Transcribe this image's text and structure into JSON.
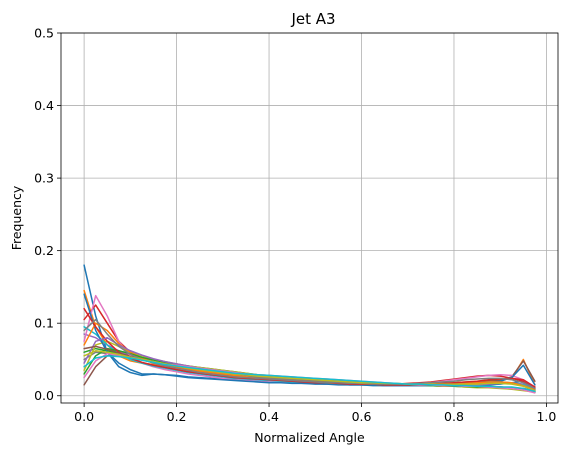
{
  "chart_data": {
    "type": "line",
    "title": "Jet A3",
    "xlabel": "Normalized Angle",
    "ylabel": "Frequency",
    "xlim": [
      -0.05,
      1.025
    ],
    "ylim": [
      -0.01,
      0.5
    ],
    "xticks": [
      0.0,
      0.2,
      0.4,
      0.6,
      0.8,
      1.0
    ],
    "xtick_labels": [
      "0.0",
      "0.2",
      "0.4",
      "0.6",
      "0.8",
      "1.0"
    ],
    "yticks": [
      0.0,
      0.1,
      0.2,
      0.3,
      0.4,
      0.5
    ],
    "ytick_labels": [
      "0.0",
      "0.1",
      "0.2",
      "0.3",
      "0.4",
      "0.5"
    ],
    "grid": true,
    "legend": "none",
    "x": [
      0.0,
      0.025,
      0.05,
      0.075,
      0.1,
      0.125,
      0.15,
      0.175,
      0.2,
      0.225,
      0.25,
      0.275,
      0.3,
      0.325,
      0.35,
      0.375,
      0.4,
      0.425,
      0.45,
      0.475,
      0.5,
      0.525,
      0.55,
      0.575,
      0.6,
      0.625,
      0.65,
      0.675,
      0.7,
      0.725,
      0.75,
      0.775,
      0.8,
      0.825,
      0.85,
      0.875,
      0.9,
      0.925,
      0.95,
      0.975
    ],
    "series_colors": [
      "#1f77b4",
      "#ff7f0e",
      "#2ca02c",
      "#d62728",
      "#9467bd",
      "#8c564b",
      "#e377c2",
      "#7f7f7f",
      "#bcbd22",
      "#17becf"
    ],
    "series": [
      {
        "values": [
          0.18,
          0.11,
          0.06,
          0.04,
          0.032,
          0.028,
          0.03,
          0.029,
          0.028,
          0.026,
          0.025,
          0.024,
          0.023,
          0.022,
          0.021,
          0.02,
          0.019,
          0.018,
          0.018,
          0.017,
          0.017,
          0.016,
          0.016,
          0.015,
          0.015,
          0.015,
          0.014,
          0.014,
          0.014,
          0.014,
          0.014,
          0.014,
          0.014,
          0.014,
          0.014,
          0.015,
          0.016,
          0.018,
          0.02,
          0.012
        ]
      },
      {
        "values": [
          0.145,
          0.095,
          0.07,
          0.055,
          0.048,
          0.045,
          0.043,
          0.04,
          0.037,
          0.034,
          0.031,
          0.029,
          0.027,
          0.025,
          0.023,
          0.022,
          0.021,
          0.02,
          0.019,
          0.018,
          0.018,
          0.017,
          0.017,
          0.016,
          0.016,
          0.015,
          0.015,
          0.015,
          0.015,
          0.015,
          0.016,
          0.017,
          0.018,
          0.019,
          0.02,
          0.021,
          0.022,
          0.024,
          0.05,
          0.015
        ]
      },
      {
        "values": [
          0.06,
          0.065,
          0.062,
          0.058,
          0.055,
          0.05,
          0.047,
          0.045,
          0.043,
          0.041,
          0.039,
          0.037,
          0.035,
          0.033,
          0.031,
          0.029,
          0.027,
          0.025,
          0.024,
          0.023,
          0.022,
          0.021,
          0.02,
          0.019,
          0.018,
          0.017,
          0.016,
          0.015,
          0.015,
          0.014,
          0.014,
          0.013,
          0.013,
          0.012,
          0.012,
          0.012,
          0.011,
          0.01,
          0.008,
          0.006
        ]
      },
      {
        "values": [
          0.105,
          0.125,
          0.1,
          0.075,
          0.06,
          0.052,
          0.046,
          0.042,
          0.039,
          0.036,
          0.033,
          0.031,
          0.029,
          0.027,
          0.025,
          0.024,
          0.023,
          0.022,
          0.021,
          0.02,
          0.019,
          0.018,
          0.017,
          0.017,
          0.016,
          0.016,
          0.016,
          0.016,
          0.017,
          0.018,
          0.019,
          0.021,
          0.023,
          0.025,
          0.027,
          0.028,
          0.027,
          0.024,
          0.02,
          0.008
        ]
      },
      {
        "values": [
          0.085,
          0.08,
          0.07,
          0.062,
          0.055,
          0.05,
          0.046,
          0.043,
          0.04,
          0.037,
          0.034,
          0.031,
          0.029,
          0.027,
          0.025,
          0.023,
          0.022,
          0.021,
          0.02,
          0.019,
          0.018,
          0.017,
          0.016,
          0.016,
          0.015,
          0.015,
          0.014,
          0.014,
          0.014,
          0.014,
          0.014,
          0.014,
          0.014,
          0.015,
          0.015,
          0.016,
          0.017,
          0.018,
          0.016,
          0.01
        ]
      },
      {
        "values": [
          0.015,
          0.04,
          0.055,
          0.058,
          0.055,
          0.05,
          0.046,
          0.043,
          0.04,
          0.037,
          0.034,
          0.032,
          0.03,
          0.028,
          0.026,
          0.025,
          0.024,
          0.023,
          0.022,
          0.021,
          0.02,
          0.019,
          0.018,
          0.017,
          0.017,
          0.016,
          0.016,
          0.015,
          0.015,
          0.015,
          0.015,
          0.016,
          0.017,
          0.018,
          0.019,
          0.02,
          0.021,
          0.026,
          0.048,
          0.02
        ]
      },
      {
        "values": [
          0.075,
          0.138,
          0.11,
          0.075,
          0.055,
          0.045,
          0.04,
          0.036,
          0.033,
          0.03,
          0.028,
          0.026,
          0.024,
          0.023,
          0.022,
          0.021,
          0.02,
          0.019,
          0.018,
          0.017,
          0.017,
          0.016,
          0.016,
          0.015,
          0.015,
          0.015,
          0.015,
          0.015,
          0.016,
          0.017,
          0.018,
          0.02,
          0.022,
          0.024,
          0.026,
          0.028,
          0.029,
          0.028,
          0.022,
          0.012
        ]
      },
      {
        "values": [
          0.05,
          0.06,
          0.058,
          0.055,
          0.052,
          0.049,
          0.046,
          0.043,
          0.04,
          0.038,
          0.036,
          0.034,
          0.032,
          0.03,
          0.028,
          0.026,
          0.025,
          0.024,
          0.023,
          0.022,
          0.021,
          0.02,
          0.019,
          0.018,
          0.017,
          0.017,
          0.016,
          0.016,
          0.015,
          0.015,
          0.015,
          0.014,
          0.014,
          0.014,
          0.013,
          0.013,
          0.012,
          0.011,
          0.009,
          0.006
        ]
      },
      {
        "values": [
          0.035,
          0.07,
          0.075,
          0.068,
          0.06,
          0.055,
          0.05,
          0.047,
          0.044,
          0.041,
          0.039,
          0.037,
          0.035,
          0.033,
          0.031,
          0.029,
          0.028,
          0.026,
          0.025,
          0.024,
          0.022,
          0.021,
          0.02,
          0.019,
          0.018,
          0.017,
          0.016,
          0.016,
          0.015,
          0.014,
          0.014,
          0.013,
          0.013,
          0.012,
          0.011,
          0.011,
          0.01,
          0.009,
          0.007,
          0.005
        ]
      },
      {
        "values": [
          0.095,
          0.085,
          0.07,
          0.058,
          0.05,
          0.045,
          0.041,
          0.038,
          0.035,
          0.032,
          0.03,
          0.028,
          0.026,
          0.024,
          0.023,
          0.022,
          0.021,
          0.02,
          0.019,
          0.018,
          0.017,
          0.017,
          0.016,
          0.016,
          0.015,
          0.015,
          0.015,
          0.015,
          0.015,
          0.015,
          0.015,
          0.016,
          0.016,
          0.017,
          0.018,
          0.019,
          0.019,
          0.018,
          0.015,
          0.009
        ]
      },
      {
        "values": [
          0.14,
          0.09,
          0.06,
          0.045,
          0.036,
          0.03,
          0.03,
          0.029,
          0.027,
          0.025,
          0.024,
          0.023,
          0.022,
          0.021,
          0.02,
          0.019,
          0.018,
          0.018,
          0.017,
          0.017,
          0.016,
          0.016,
          0.015,
          0.015,
          0.015,
          0.014,
          0.014,
          0.014,
          0.014,
          0.014,
          0.014,
          0.015,
          0.015,
          0.016,
          0.017,
          0.018,
          0.02,
          0.025,
          0.042,
          0.015
        ]
      },
      {
        "values": [
          0.07,
          0.1,
          0.09,
          0.072,
          0.06,
          0.052,
          0.047,
          0.043,
          0.04,
          0.037,
          0.034,
          0.032,
          0.03,
          0.028,
          0.026,
          0.024,
          0.023,
          0.022,
          0.021,
          0.02,
          0.019,
          0.018,
          0.017,
          0.017,
          0.016,
          0.016,
          0.015,
          0.015,
          0.015,
          0.015,
          0.015,
          0.016,
          0.016,
          0.017,
          0.018,
          0.019,
          0.019,
          0.018,
          0.014,
          0.008
        ]
      },
      {
        "values": [
          0.03,
          0.055,
          0.065,
          0.062,
          0.058,
          0.053,
          0.049,
          0.046,
          0.043,
          0.04,
          0.038,
          0.036,
          0.034,
          0.032,
          0.03,
          0.028,
          0.027,
          0.026,
          0.024,
          0.023,
          0.022,
          0.021,
          0.02,
          0.019,
          0.018,
          0.017,
          0.016,
          0.016,
          0.015,
          0.015,
          0.014,
          0.014,
          0.013,
          0.013,
          0.012,
          0.012,
          0.011,
          0.01,
          0.008,
          0.005
        ]
      },
      {
        "values": [
          0.12,
          0.095,
          0.075,
          0.06,
          0.052,
          0.046,
          0.042,
          0.039,
          0.036,
          0.033,
          0.031,
          0.029,
          0.027,
          0.025,
          0.024,
          0.023,
          0.022,
          0.021,
          0.02,
          0.019,
          0.018,
          0.018,
          0.017,
          0.016,
          0.016,
          0.016,
          0.015,
          0.015,
          0.015,
          0.016,
          0.016,
          0.017,
          0.018,
          0.019,
          0.02,
          0.022,
          0.023,
          0.024,
          0.022,
          0.012
        ]
      },
      {
        "values": [
          0.045,
          0.075,
          0.08,
          0.07,
          0.062,
          0.056,
          0.051,
          0.047,
          0.044,
          0.041,
          0.038,
          0.036,
          0.034,
          0.032,
          0.03,
          0.028,
          0.027,
          0.025,
          0.024,
          0.023,
          0.022,
          0.021,
          0.02,
          0.019,
          0.018,
          0.017,
          0.017,
          0.016,
          0.016,
          0.015,
          0.015,
          0.014,
          0.014,
          0.013,
          0.013,
          0.012,
          0.012,
          0.011,
          0.009,
          0.006
        ]
      },
      {
        "values": [
          0.065,
          0.068,
          0.064,
          0.059,
          0.054,
          0.05,
          0.047,
          0.044,
          0.041,
          0.039,
          0.037,
          0.035,
          0.033,
          0.031,
          0.029,
          0.028,
          0.027,
          0.026,
          0.025,
          0.024,
          0.023,
          0.022,
          0.021,
          0.02,
          0.019,
          0.018,
          0.017,
          0.016,
          0.016,
          0.015,
          0.015,
          0.014,
          0.014,
          0.013,
          0.013,
          0.012,
          0.012,
          0.011,
          0.01,
          0.007
        ]
      },
      {
        "values": [
          0.025,
          0.048,
          0.058,
          0.056,
          0.053,
          0.05,
          0.047,
          0.044,
          0.042,
          0.04,
          0.038,
          0.036,
          0.034,
          0.032,
          0.03,
          0.029,
          0.028,
          0.027,
          0.026,
          0.025,
          0.024,
          0.023,
          0.022,
          0.021,
          0.02,
          0.019,
          0.018,
          0.017,
          0.016,
          0.015,
          0.015,
          0.014,
          0.014,
          0.013,
          0.013,
          0.012,
          0.011,
          0.01,
          0.008,
          0.004
        ]
      },
      {
        "values": [
          0.09,
          0.105,
          0.085,
          0.068,
          0.057,
          0.05,
          0.045,
          0.041,
          0.038,
          0.035,
          0.032,
          0.03,
          0.028,
          0.026,
          0.025,
          0.024,
          0.023,
          0.022,
          0.021,
          0.02,
          0.019,
          0.018,
          0.018,
          0.017,
          0.017,
          0.016,
          0.016,
          0.016,
          0.016,
          0.017,
          0.018,
          0.019,
          0.02,
          0.022,
          0.023,
          0.024,
          0.024,
          0.022,
          0.018,
          0.01
        ]
      },
      {
        "values": [
          0.055,
          0.062,
          0.06,
          0.057,
          0.053,
          0.05,
          0.047,
          0.044,
          0.041,
          0.038,
          0.036,
          0.034,
          0.032,
          0.03,
          0.029,
          0.027,
          0.026,
          0.025,
          0.024,
          0.023,
          0.022,
          0.021,
          0.02,
          0.019,
          0.018,
          0.018,
          0.017,
          0.017,
          0.016,
          0.016,
          0.016,
          0.016,
          0.016,
          0.016,
          0.016,
          0.017,
          0.017,
          0.016,
          0.013,
          0.007
        ]
      },
      {
        "values": [
          0.04,
          0.052,
          0.055,
          0.054,
          0.052,
          0.049,
          0.046,
          0.043,
          0.041,
          0.039,
          0.037,
          0.035,
          0.033,
          0.031,
          0.03,
          0.029,
          0.028,
          0.027,
          0.026,
          0.025,
          0.024,
          0.023,
          0.022,
          0.021,
          0.02,
          0.019,
          0.018,
          0.017,
          0.016,
          0.016,
          0.015,
          0.015,
          0.014,
          0.014,
          0.013,
          0.013,
          0.012,
          0.012,
          0.01,
          0.006
        ]
      }
    ]
  }
}
